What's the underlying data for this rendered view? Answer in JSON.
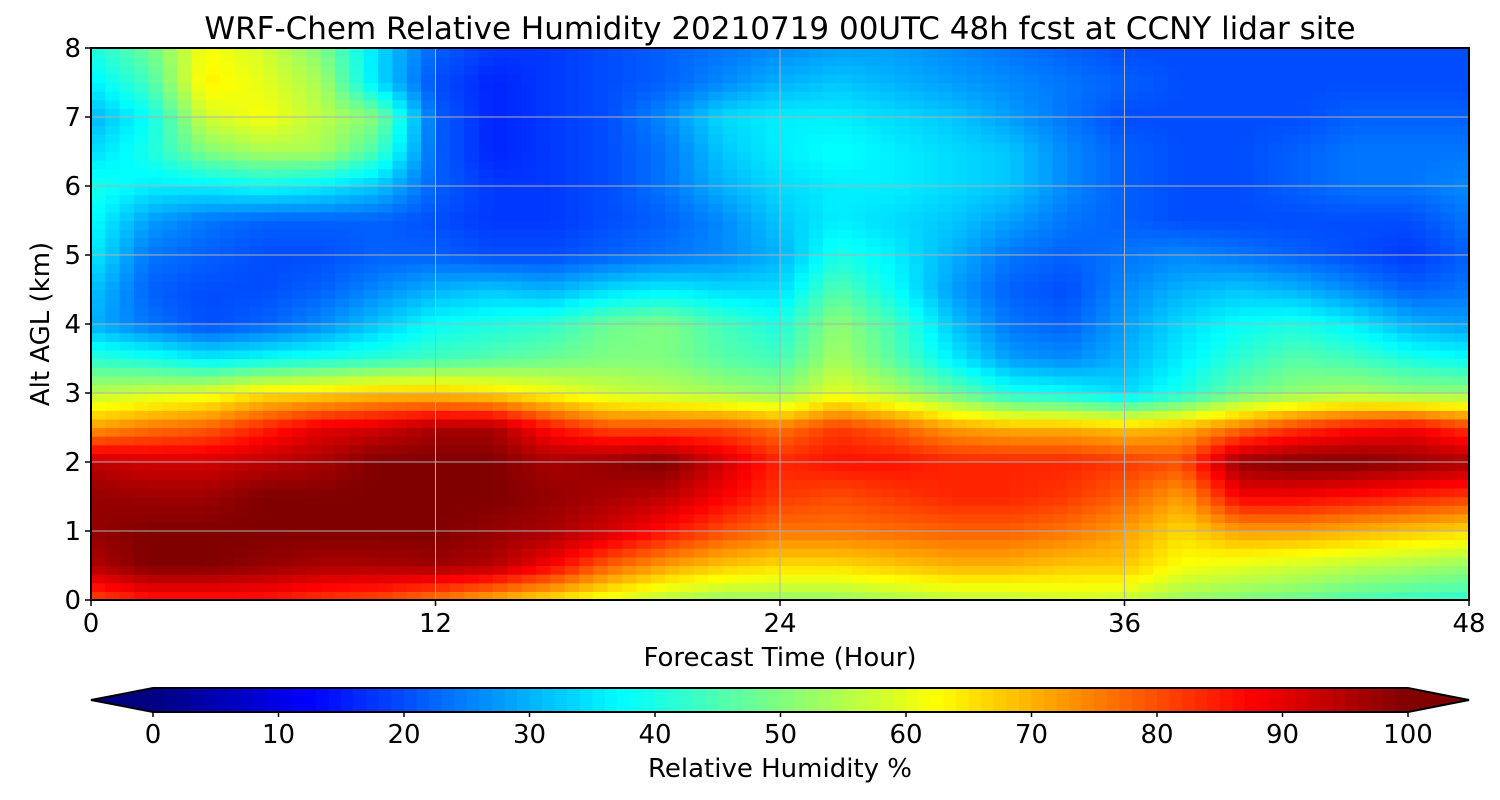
{
  "chart_data": {
    "type": "heatmap",
    "title": "WRF-Chem Relative Humidity 20210719 00UTC 48h fcst at CCNY lidar site",
    "xlabel": "Forecast Time (Hour)",
    "ylabel": "Alt AGL (km)",
    "xlim": [
      0,
      48
    ],
    "ylim": [
      0,
      8
    ],
    "xticks": [
      0,
      12,
      24,
      36,
      48
    ],
    "yticks": [
      0,
      1,
      2,
      3,
      4,
      5,
      6,
      7,
      8
    ],
    "grid": true,
    "colormap": "jet",
    "colorbar": {
      "label": "Relative Humidity %",
      "range": [
        0,
        100
      ],
      "ticks": [
        0,
        10,
        20,
        30,
        40,
        50,
        60,
        70,
        80,
        90,
        100
      ],
      "extend": "both",
      "orientation": "horizontal",
      "placement": "bottom"
    },
    "x": [
      0,
      2,
      4,
      6,
      8,
      10,
      12,
      14,
      16,
      18,
      20,
      22,
      24,
      26,
      28,
      30,
      32,
      34,
      36,
      38,
      40,
      42,
      44,
      46,
      48
    ],
    "y": [
      0,
      0.5,
      1,
      1.5,
      2,
      2.5,
      3,
      3.5,
      4,
      4.5,
      5,
      5.5,
      6,
      6.5,
      7,
      7.5,
      8
    ],
    "z": [
      [
        80,
        85,
        85,
        85,
        82,
        80,
        75,
        70,
        65,
        60,
        55,
        52,
        52,
        52,
        54,
        56,
        56,
        58,
        57,
        52,
        50,
        48,
        45,
        43,
        42
      ],
      [
        95,
        100,
        100,
        98,
        96,
        96,
        97,
        95,
        88,
        78,
        72,
        68,
        66,
        66,
        68,
        70,
        70,
        68,
        68,
        62,
        60,
        58,
        56,
        54,
        52
      ],
      [
        98,
        100,
        100,
        100,
        100,
        100,
        100,
        98,
        96,
        92,
        86,
        80,
        76,
        76,
        77,
        78,
        78,
        76,
        72,
        66,
        72,
        72,
        70,
        68,
        66
      ],
      [
        98,
        97,
        97,
        100,
        100,
        100,
        100,
        100,
        98,
        96,
        94,
        88,
        82,
        80,
        82,
        84,
        84,
        82,
        78,
        72,
        88,
        88,
        86,
        84,
        82
      ],
      [
        94,
        92,
        92,
        94,
        96,
        100,
        100,
        100,
        96,
        98,
        100,
        92,
        84,
        86,
        86,
        84,
        84,
        84,
        82,
        80,
        98,
        100,
        100,
        98,
        96
      ],
      [
        72,
        76,
        78,
        84,
        90,
        92,
        96,
        96,
        86,
        80,
        80,
        80,
        76,
        82,
        78,
        72,
        70,
        70,
        68,
        70,
        76,
        82,
        86,
        88,
        82
      ],
      [
        56,
        58,
        60,
        65,
        66,
        68,
        68,
        66,
        62,
        58,
        56,
        54,
        52,
        60,
        55,
        48,
        40,
        38,
        34,
        40,
        48,
        52,
        54,
        52,
        52
      ],
      [
        42,
        40,
        36,
        38,
        40,
        42,
        44,
        46,
        48,
        50,
        50,
        46,
        44,
        54,
        46,
        36,
        28,
        26,
        30,
        36,
        42,
        46,
        44,
        40,
        38
      ],
      [
        30,
        24,
        20,
        22,
        26,
        32,
        38,
        40,
        42,
        48,
        50,
        44,
        40,
        52,
        44,
        32,
        24,
        22,
        28,
        34,
        38,
        40,
        36,
        30,
        28
      ],
      [
        32,
        22,
        20,
        20,
        22,
        26,
        30,
        32,
        30,
        34,
        36,
        34,
        34,
        46,
        38,
        28,
        22,
        20,
        26,
        30,
        32,
        30,
        26,
        22,
        24
      ],
      [
        36,
        24,
        22,
        20,
        20,
        22,
        22,
        20,
        20,
        22,
        24,
        26,
        30,
        40,
        36,
        30,
        24,
        22,
        24,
        26,
        24,
        22,
        20,
        18,
        22
      ],
      [
        38,
        28,
        24,
        22,
        22,
        22,
        20,
        18,
        18,
        20,
        22,
        26,
        32,
        36,
        34,
        32,
        28,
        24,
        22,
        20,
        20,
        20,
        20,
        20,
        24
      ],
      [
        40,
        36,
        36,
        38,
        36,
        32,
        22,
        18,
        18,
        20,
        24,
        30,
        34,
        36,
        36,
        34,
        32,
        26,
        22,
        20,
        20,
        22,
        24,
        24,
        26
      ],
      [
        34,
        40,
        50,
        54,
        54,
        44,
        22,
        16,
        18,
        20,
        24,
        32,
        36,
        38,
        36,
        34,
        32,
        26,
        22,
        20,
        20,
        22,
        24,
        24,
        24
      ],
      [
        30,
        38,
        58,
        62,
        56,
        50,
        22,
        16,
        18,
        20,
        26,
        34,
        36,
        36,
        34,
        32,
        28,
        24,
        20,
        20,
        20,
        20,
        22,
        22,
        22
      ],
      [
        36,
        44,
        64,
        60,
        54,
        34,
        20,
        16,
        18,
        20,
        22,
        26,
        30,
        32,
        30,
        28,
        26,
        24,
        22,
        20,
        20,
        20,
        20,
        20,
        20
      ],
      [
        40,
        48,
        62,
        58,
        50,
        34,
        22,
        18,
        18,
        20,
        22,
        24,
        26,
        28,
        28,
        26,
        24,
        22,
        20,
        20,
        20,
        20,
        20,
        20,
        20
      ]
    ]
  }
}
